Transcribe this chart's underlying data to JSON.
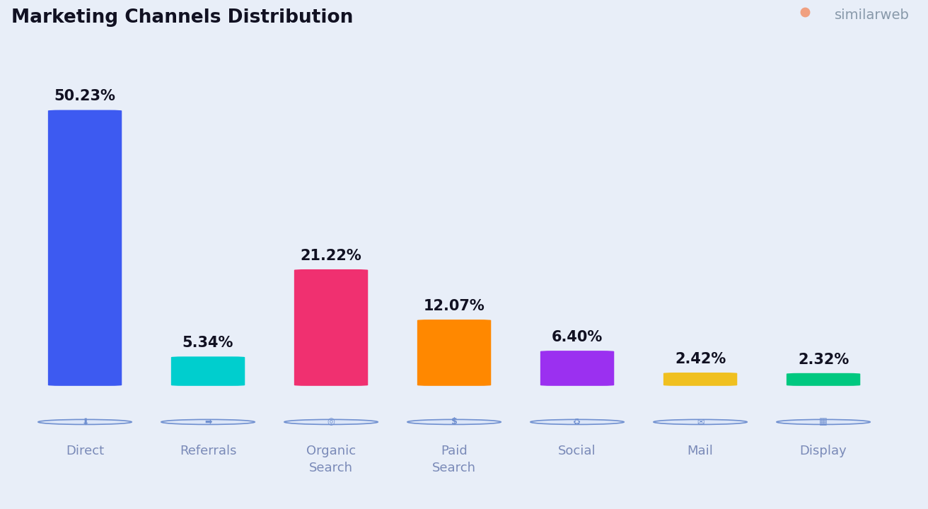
{
  "title": "Marketing Channels Distribution",
  "background_color": "#e8eef8",
  "categories": [
    "Direct",
    "Referrals",
    "Organic\nSearch",
    "Paid\nSearch",
    "Social",
    "Mail",
    "Display"
  ],
  "values": [
    50.23,
    5.34,
    21.22,
    12.07,
    6.4,
    2.42,
    2.32
  ],
  "labels": [
    "50.23%",
    "5.34%",
    "21.22%",
    "12.07%",
    "6.40%",
    "2.42%",
    "2.32%"
  ],
  "bar_colors": [
    "#3d5af1",
    "#00cece",
    "#f03070",
    "#ff8800",
    "#9b30f0",
    "#f0c020",
    "#00c880"
  ],
  "title_fontsize": 19,
  "label_fontsize": 15,
  "tick_fontsize": 13,
  "title_color": "#111122",
  "label_color": "#111122",
  "tick_color": "#7a8ab8",
  "similarweb_color": "#8899aa",
  "similarweb_orange": "#f0a080",
  "icon_color": "#7090d0",
  "icon_fill": "#dce6f8",
  "max_bar_height": 42.0,
  "bar_width": 0.6,
  "bar_min_height": 1.8,
  "xlim": [
    -0.65,
    6.65
  ],
  "ylim_bottom": -18,
  "ylim_top": 58
}
